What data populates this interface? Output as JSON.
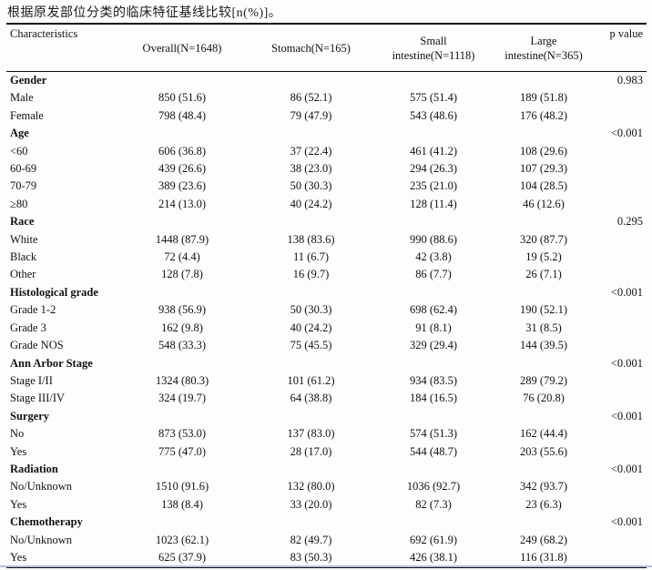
{
  "title": "根据原发部位分类的临床特征基线比较[n(%)]。",
  "colors": {
    "text": "#111111",
    "rule": "#0d0d0d",
    "background": "#fdfdfd",
    "bottom_artifact_line": "#b3bedd"
  },
  "table": {
    "header": {
      "characteristics": "Characteristics",
      "overall": "Overall(N=1648)",
      "stomach": "Stomach(N=165)",
      "small_intestine": "Small\nintestine(N=1118)",
      "large_intestine": "Large\nintestine(N=365)",
      "p_value": "p value"
    },
    "rows": [
      {
        "type": "group",
        "label": "Gender",
        "p": "0.983"
      },
      {
        "type": "item",
        "label": "Male",
        "overall": "850 (51.6)",
        "stomach": "86 (52.1)",
        "small": "575 (51.4)",
        "large": "189 (51.8)"
      },
      {
        "type": "item",
        "label": "Female",
        "overall": "798 (48.4)",
        "stomach": "79 (47.9)",
        "small": "543 (48.6)",
        "large": "176 (48.2)"
      },
      {
        "type": "group",
        "label": "Age",
        "p": "<0.001"
      },
      {
        "type": "item",
        "label": "<60",
        "overall": "606 (36.8)",
        "stomach": "37 (22.4)",
        "small": "461 (41.2)",
        "large": "108 (29.6)"
      },
      {
        "type": "item",
        "label": "60-69",
        "overall": "439 (26.6)",
        "stomach": "38 (23.0)",
        "small": "294 (26.3)",
        "large": "107 (29.3)"
      },
      {
        "type": "item",
        "label": "70-79",
        "overall": "389 (23.6)",
        "stomach": "50 (30.3)",
        "small": "235 (21.0)",
        "large": "104 (28.5)"
      },
      {
        "type": "item",
        "label": "≥80",
        "overall": "214 (13.0)",
        "stomach": "40 (24.2)",
        "small": "128 (11.4)",
        "large": "46 (12.6)"
      },
      {
        "type": "group",
        "label": "Race",
        "p": "0.295"
      },
      {
        "type": "item",
        "label": "White",
        "overall": "1448 (87.9)",
        "stomach": "138 (83.6)",
        "small": "990 (88.6)",
        "large": "320 (87.7)"
      },
      {
        "type": "item",
        "label": "Black",
        "overall": "72 (4.4)",
        "stomach": "11 (6.7)",
        "small": "42 (3.8)",
        "large": "19 (5.2)"
      },
      {
        "type": "item",
        "label": "Other",
        "overall": "128 (7.8)",
        "stomach": "16 (9.7)",
        "small": "86 (7.7)",
        "large": "26 (7.1)"
      },
      {
        "type": "group",
        "label": "Histological grade",
        "p": "<0.001"
      },
      {
        "type": "item",
        "label": "Grade 1-2",
        "overall": "938 (56.9)",
        "stomach": "50 (30.3)",
        "small": "698 (62.4)",
        "large": "190 (52.1)"
      },
      {
        "type": "item",
        "label": "Grade 3",
        "overall": "162 (9.8)",
        "stomach": "40 (24.2)",
        "small": "91 (8.1)",
        "large": "31 (8.5)"
      },
      {
        "type": "item",
        "label": "Grade NOS",
        "overall": "548 (33.3)",
        "stomach": "75 (45.5)",
        "small": "329 (29.4)",
        "large": "144 (39.5)"
      },
      {
        "type": "group",
        "label": "Ann Arbor Stage",
        "p": "<0.001"
      },
      {
        "type": "item",
        "label": "Stage I/II",
        "overall": "1324 (80.3)",
        "stomach": "101 (61.2)",
        "small": "934 (83.5)",
        "large": "289 (79.2)"
      },
      {
        "type": "item",
        "label": "Stage III/IV",
        "overall": "324 (19.7)",
        "stomach": "64 (38.8)",
        "small": "184 (16.5)",
        "large": "76 (20.8)"
      },
      {
        "type": "group",
        "label": "Surgery",
        "p": "<0.001"
      },
      {
        "type": "item",
        "label": "No",
        "overall": "873 (53.0)",
        "stomach": "137 (83.0)",
        "small": "574 (51.3)",
        "large": "162 (44.4)"
      },
      {
        "type": "item",
        "label": "Yes",
        "overall": "775 (47.0)",
        "stomach": "28 (17.0)",
        "small": "544 (48.7)",
        "large": "203 (55.6)"
      },
      {
        "type": "group",
        "label": "Radiation",
        "p": "<0.001"
      },
      {
        "type": "item",
        "label": "No/Unknown",
        "overall": "1510 (91.6)",
        "stomach": "132 (80.0)",
        "small": "1036 (92.7)",
        "large": "342 (93.7)"
      },
      {
        "type": "item",
        "label": "Yes",
        "overall": "138 (8.4)",
        "stomach": "33 (20.0)",
        "small": "82 (7.3)",
        "large": "23 (6.3)"
      },
      {
        "type": "group",
        "label": "Chemotherapy",
        "p": "<0.001"
      },
      {
        "type": "item",
        "label": "No/Unknown",
        "overall": "1023 (62.1)",
        "stomach": "82 (49.7)",
        "small": "692 (61.9)",
        "large": "249 (68.2)"
      },
      {
        "type": "item",
        "label": "Yes",
        "overall": "625 (37.9)",
        "stomach": "83 (50.3)",
        "small": "426 (38.1)",
        "large": "116 (31.8)"
      }
    ]
  }
}
